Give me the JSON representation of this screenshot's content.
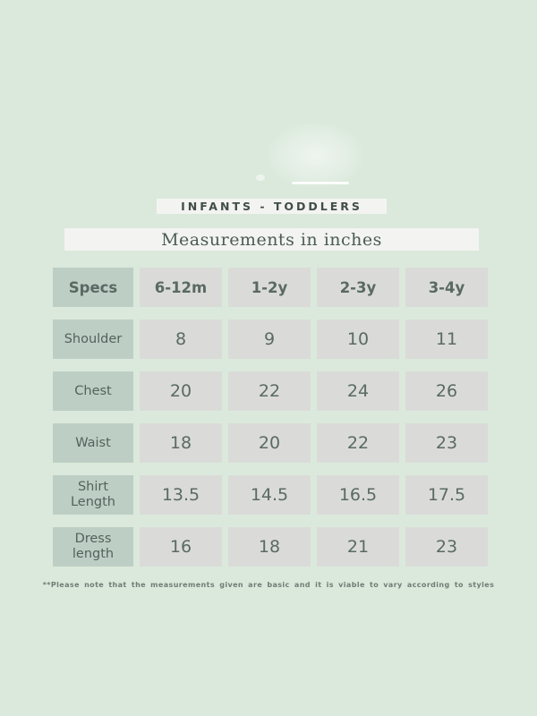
{
  "page": {
    "background_color": "#dbe9dc",
    "bar_color": "#f3f4f1",
    "label_cell_color": "#bdcfc5",
    "value_cell_color": "#dadbd8",
    "text_color": "#57665f"
  },
  "header": {
    "category_label": "INFANTS - TODDLERS",
    "subtitle": "Measurements in inches"
  },
  "table": {
    "columns": [
      "Specs",
      "6-12m",
      "1-2y",
      "2-3y",
      "3-4y"
    ],
    "rows": [
      {
        "label": "Shoulder",
        "values": [
          "8",
          "9",
          "10",
          "11"
        ]
      },
      {
        "label": "Chest",
        "values": [
          "20",
          "22",
          "24",
          "26"
        ]
      },
      {
        "label": "Waist",
        "values": [
          "18",
          "20",
          "22",
          "23"
        ]
      },
      {
        "label": "Shirt\nLength",
        "values": [
          "13.5",
          "14.5",
          "16.5",
          "17.5"
        ]
      },
      {
        "label": "Dress\nlength",
        "values": [
          "16",
          "18",
          "21",
          "23"
        ]
      }
    ]
  },
  "footnote": "**Please note that the measurements given are basic and it is viable to vary according to styles"
}
